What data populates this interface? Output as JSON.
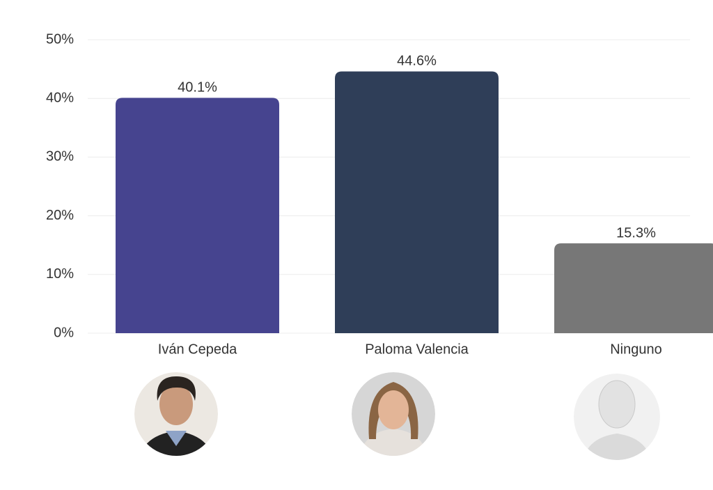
{
  "chart_data": {
    "type": "bar",
    "categories": [
      "Iván Cepeda",
      "Paloma Valencia",
      "Ninguno"
    ],
    "values": [
      40.1,
      44.6,
      15.3
    ],
    "value_labels": [
      "40.1%",
      "44.6%",
      "15.3%"
    ],
    "colors": [
      "#46448f",
      "#2f3e58",
      "#777777"
    ],
    "ylim": [
      0,
      50
    ],
    "yticks": [
      {
        "value": 0,
        "label": "0%"
      },
      {
        "value": 10,
        "label": "10%"
      },
      {
        "value": 20,
        "label": "20%"
      },
      {
        "value": 30,
        "label": "30%"
      },
      {
        "value": 40,
        "label": "40%"
      },
      {
        "value": 50,
        "label": "50%"
      }
    ],
    "grid": true
  }
}
